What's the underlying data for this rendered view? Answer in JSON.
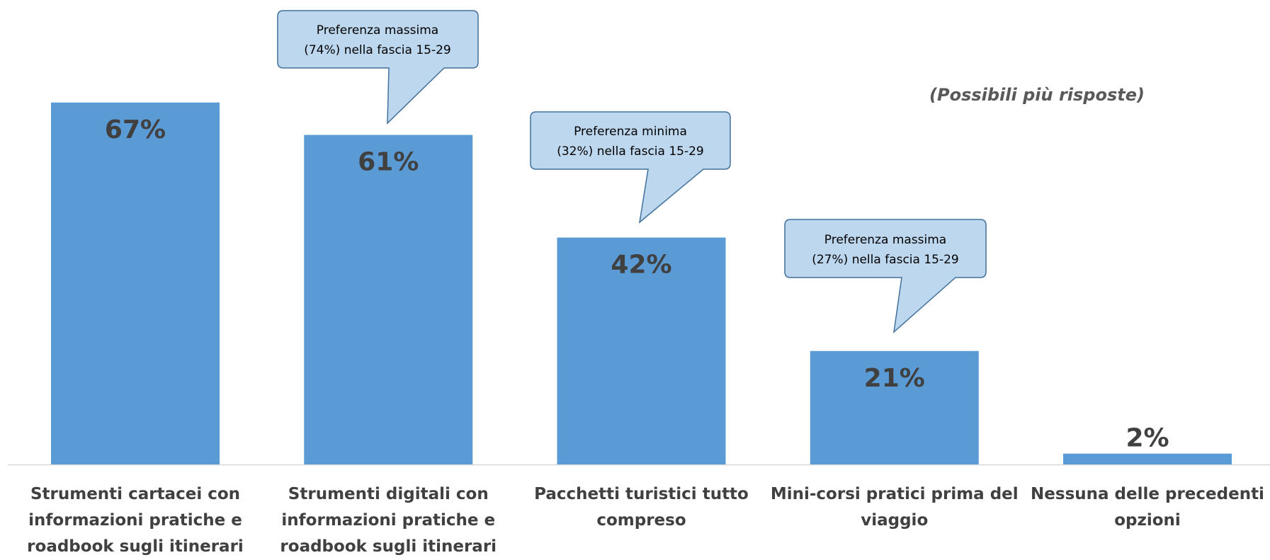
{
  "chart_data": {
    "type": "bar",
    "note": "(Possibili più risposte)",
    "categories": [
      "Strumenti cartacei con informazioni pratiche e roadbook sugli itinerari",
      "Strumenti digitali con informazioni pratiche e roadbook sugli itinerari",
      "Pacchetti turistici tutto compreso",
      "Mini-corsi pratici prima del viaggio",
      "Nessuna delle precedenti opzioni"
    ],
    "values": [
      67,
      61,
      42,
      21,
      2
    ],
    "value_labels": [
      "67%",
      "61%",
      "42%",
      "21%",
      "2%"
    ],
    "color": "#5b9bd5",
    "annotations": [
      {
        "lines": [
          "Preferenza massima",
          "(74%) nella fascia 15-29"
        ]
      },
      {
        "lines": [
          "Preferenza minima",
          "(32%) nella fascia 15-29"
        ]
      },
      {
        "lines": [
          "Preferenza massima",
          "(27%) nella fascia 15-29"
        ]
      }
    ]
  }
}
